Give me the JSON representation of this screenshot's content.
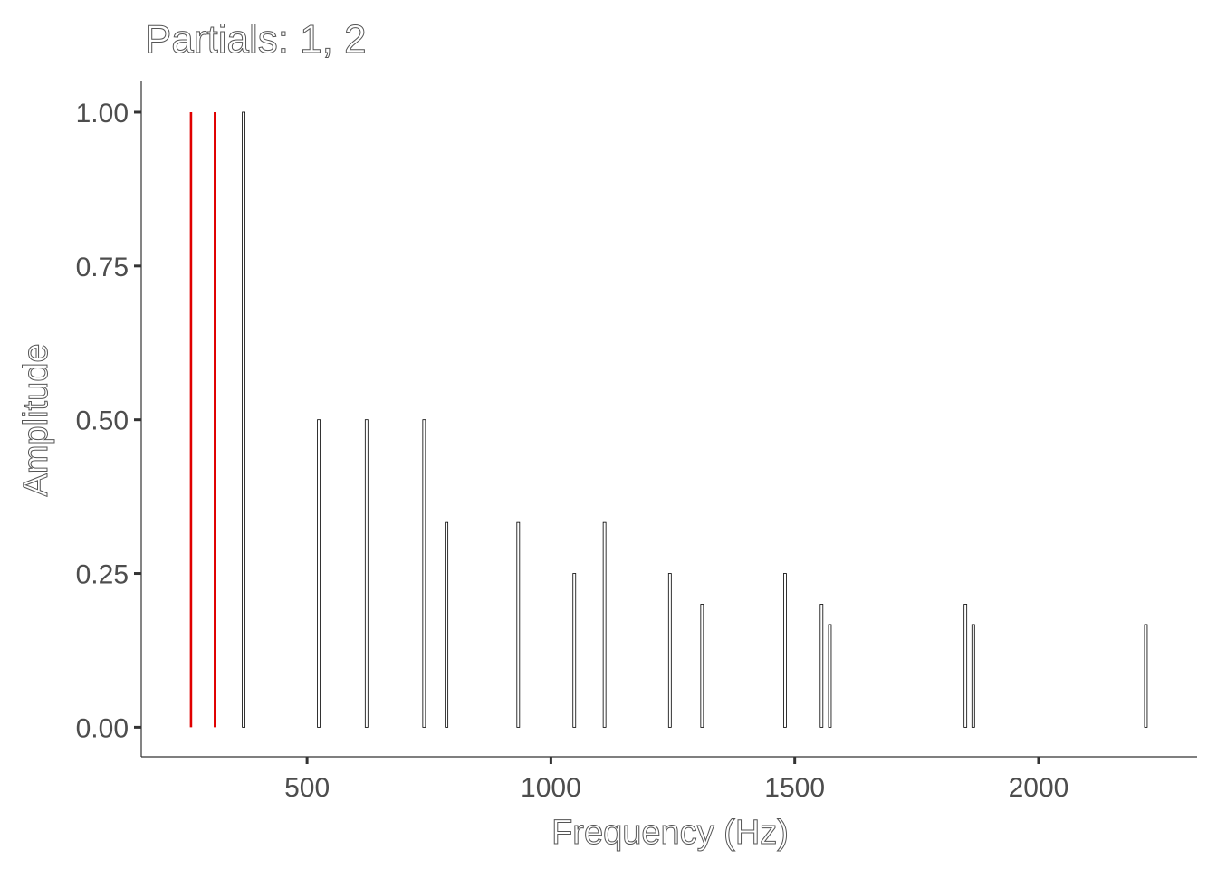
{
  "chart_data": {
    "type": "bar",
    "title": "Partials: 1, 2",
    "xlabel": "Frequency (Hz)",
    "ylabel": "Amplitude",
    "xlim": [
      160,
      2325
    ],
    "ylim": [
      -0.048,
      1.05
    ],
    "x_ticks": [
      {
        "value": 500,
        "label": "500"
      },
      {
        "value": 1000,
        "label": "1000"
      },
      {
        "value": 1500,
        "label": "1500"
      },
      {
        "value": 2000,
        "label": "2000"
      }
    ],
    "y_ticks": [
      {
        "value": 0,
        "label": "0.00"
      },
      {
        "value": 0.25,
        "label": "0.25"
      },
      {
        "value": 0.5,
        "label": "0.50"
      },
      {
        "value": 0.75,
        "label": "0.75"
      },
      {
        "value": 1.0,
        "label": "1.00"
      }
    ],
    "grid": false,
    "colors": {
      "highlighted": "#e00000",
      "other": "#000000"
    },
    "partials": [
      {
        "frequency": 262,
        "amplitude": 1.0,
        "highlighted": true
      },
      {
        "frequency": 311,
        "amplitude": 1.0,
        "highlighted": true
      },
      {
        "frequency": 370,
        "amplitude": 1.0,
        "highlighted": false
      },
      {
        "frequency": 524,
        "amplitude": 0.5,
        "highlighted": false
      },
      {
        "frequency": 622,
        "amplitude": 0.5,
        "highlighted": false
      },
      {
        "frequency": 740,
        "amplitude": 0.5,
        "highlighted": false
      },
      {
        "frequency": 786,
        "amplitude": 0.333,
        "highlighted": false
      },
      {
        "frequency": 933,
        "amplitude": 0.333,
        "highlighted": false
      },
      {
        "frequency": 1048,
        "amplitude": 0.25,
        "highlighted": false
      },
      {
        "frequency": 1110,
        "amplitude": 0.333,
        "highlighted": false
      },
      {
        "frequency": 1244,
        "amplitude": 0.25,
        "highlighted": false
      },
      {
        "frequency": 1310,
        "amplitude": 0.2,
        "highlighted": false
      },
      {
        "frequency": 1480,
        "amplitude": 0.25,
        "highlighted": false
      },
      {
        "frequency": 1555,
        "amplitude": 0.2,
        "highlighted": false
      },
      {
        "frequency": 1572,
        "amplitude": 0.167,
        "highlighted": false
      },
      {
        "frequency": 1850,
        "amplitude": 0.2,
        "highlighted": false
      },
      {
        "frequency": 1866,
        "amplitude": 0.167,
        "highlighted": false
      },
      {
        "frequency": 2220,
        "amplitude": 0.167,
        "highlighted": false
      }
    ]
  }
}
